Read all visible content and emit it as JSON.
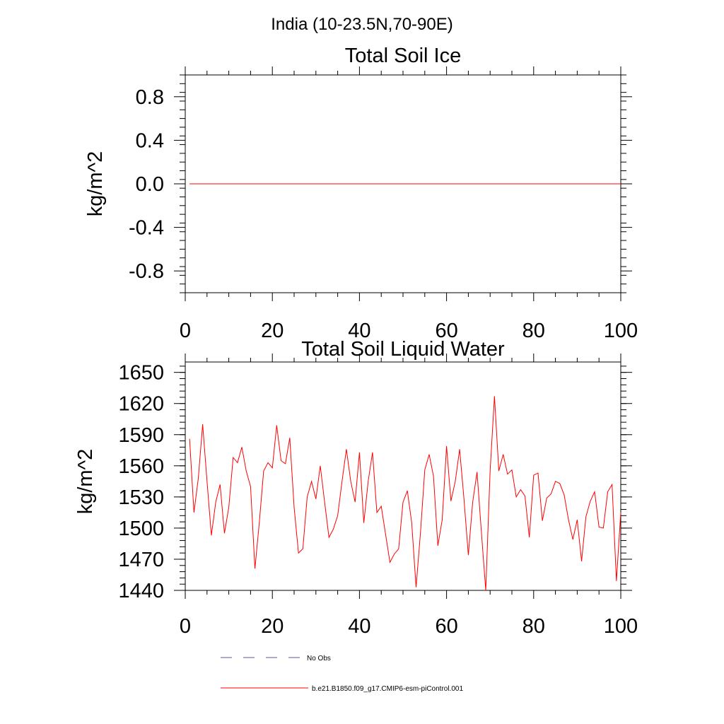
{
  "suptitle": "India (10-23.5N,70-90E)",
  "chart_data": [
    {
      "type": "line",
      "title": "Total Soil Ice",
      "xlabel": "",
      "ylabel": "kg/m^2",
      "xlim": [
        0,
        100
      ],
      "ylim": [
        -1.0,
        1.0
      ],
      "xticks": [
        0,
        20,
        40,
        60,
        80,
        100
      ],
      "xtick_labels": [
        "0",
        "20",
        "40",
        "60",
        "80",
        "100"
      ],
      "yticks": [
        0.8,
        0.4,
        0.0,
        -0.4,
        -0.8
      ],
      "ytick_labels": [
        "0.8",
        "0.4",
        "0.0",
        "-0.4",
        "-0.8"
      ],
      "series": [
        {
          "name": "b.e21.B1850.f09_g17.CMIP6-esm-piControl.001",
          "color": "#ff0000",
          "x": [
            1,
            100
          ],
          "values": [
            0.0,
            0.0
          ]
        }
      ]
    },
    {
      "type": "line",
      "title": "Total Soil Liquid Water",
      "xlabel": "",
      "ylabel": "kg/m^2",
      "xlim": [
        0,
        100
      ],
      "ylim": [
        1440,
        1660
      ],
      "xticks": [
        0,
        20,
        40,
        60,
        80,
        100
      ],
      "xtick_labels": [
        "0",
        "20",
        "40",
        "60",
        "80",
        "100"
      ],
      "yticks": [
        1650,
        1620,
        1590,
        1560,
        1530,
        1500,
        1470,
        1440
      ],
      "ytick_labels": [
        "1650",
        "1620",
        "1590",
        "1560",
        "1530",
        "1500",
        "1470",
        "1440"
      ],
      "series": [
        {
          "name": "b.e21.B1850.f09_g17.CMIP6-esm-piControl.001",
          "color": "#ff0000",
          "x_start": 1,
          "x_step": 1,
          "values": [
            1586,
            1515,
            1548,
            1600,
            1545,
            1493,
            1525,
            1542,
            1495,
            1520,
            1568,
            1563,
            1578,
            1555,
            1540,
            1461,
            1505,
            1555,
            1563,
            1558,
            1599,
            1565,
            1562,
            1587,
            1520,
            1476,
            1480,
            1530,
            1545,
            1528,
            1560,
            1525,
            1491,
            1499,
            1512,
            1545,
            1576,
            1545,
            1525,
            1573,
            1505,
            1545,
            1573,
            1515,
            1521,
            1494,
            1467,
            1475,
            1480,
            1525,
            1536,
            1505,
            1443,
            1495,
            1556,
            1571,
            1550,
            1483,
            1508,
            1579,
            1526,
            1545,
            1576,
            1528,
            1474,
            1525,
            1554,
            1496,
            1440,
            1555,
            1627,
            1555,
            1571,
            1552,
            1556,
            1530,
            1537,
            1531,
            1491,
            1551,
            1553,
            1507,
            1529,
            1533,
            1545,
            1543,
            1532,
            1508,
            1489,
            1508,
            1468,
            1511,
            1526,
            1535,
            1501,
            1500,
            1535,
            1542,
            1449,
            1515
          ]
        }
      ]
    }
  ],
  "legend": {
    "position": "bottom",
    "entries": [
      {
        "label": "No Obs",
        "color": "#5a5a8c",
        "style": "dashed"
      },
      {
        "label": "b.e21.B1850.f09_g17.CMIP6-esm-piControl.001",
        "color": "#ff0000",
        "style": "solid"
      }
    ]
  }
}
